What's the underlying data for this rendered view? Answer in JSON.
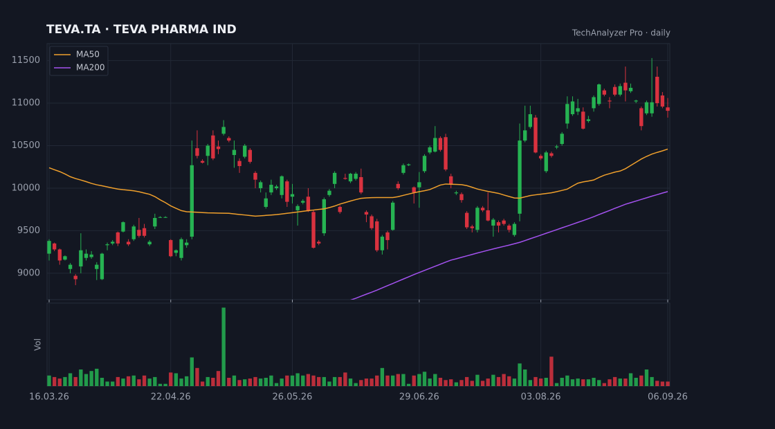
{
  "chart_data": {
    "type": "candlestick",
    "title": "TEVA.TA  ·  TEVA PHARMA IND",
    "subtitle": "TechAnalyzer Pro · daily",
    "categories": [
      "16.03.26",
      null,
      null,
      null,
      null,
      null,
      null,
      null,
      null,
      null,
      null,
      null,
      null,
      null,
      null,
      null,
      null,
      null,
      null,
      null,
      null,
      null,
      null,
      "22.04.26",
      null,
      null,
      null,
      null,
      null,
      null,
      null,
      null,
      null,
      null,
      null,
      null,
      null,
      null,
      null,
      null,
      null,
      null,
      null,
      null,
      null,
      null,
      "26.05.26",
      null,
      null,
      null,
      null,
      null,
      null,
      null,
      null,
      null,
      null,
      null,
      null,
      null,
      null,
      null,
      null,
      null,
      null,
      null,
      null,
      null,
      null,
      null,
      "29.06.26",
      null,
      null,
      null,
      null,
      null,
      null,
      null,
      null,
      null,
      null,
      null,
      null,
      null,
      null,
      null,
      null,
      null,
      null,
      null,
      null,
      null,
      null,
      "03.08.26",
      null,
      null,
      null,
      null,
      null,
      null,
      null,
      null,
      null,
      null,
      null,
      null,
      null,
      null,
      null,
      null,
      null,
      null,
      null,
      null,
      null,
      null,
      null,
      "06.09.26"
    ],
    "open": [
      9230,
      9350,
      9280,
      9160,
      9050,
      8970,
      9080,
      9180,
      9190,
      9050,
      8930,
      9330,
      9350,
      9480,
      9490,
      9370,
      9400,
      9510,
      9530,
      9340,
      9550,
      9660,
      9660,
      9390,
      9240,
      9180,
      9330,
      9430,
      10470,
      10320,
      10380,
      10620,
      10490,
      10640,
      10590,
      10390,
      10320,
      10370,
      10450,
      10180,
      10000,
      9780,
      9950,
      10000,
      9920,
      10080,
      9900,
      9740,
      9830,
      9900,
      9720,
      9370,
      9470,
      9920,
      10050,
      9780,
      10120,
      10080,
      10110,
      10130,
      9720,
      9670,
      9610,
      9270,
      9480,
      9510,
      10050,
      10180,
      10270,
      10010,
      10010,
      10200,
      10420,
      10430,
      10590,
      10600,
      10140,
      9940,
      9930,
      9710,
      9550,
      9510,
      9770,
      9740,
      9560,
      9600,
      9620,
      9560,
      9450,
      9700,
      10560,
      10720,
      10830,
      10380,
      10200,
      10410,
      10480,
      10520,
      10760,
      10870,
      10900,
      10900,
      10790,
      10940,
      10990,
      11150,
      11030,
      11190,
      11100,
      11240,
      11140,
      11020,
      10940,
      10880,
      10880,
      11310,
      11090,
      10950
    ],
    "high": [
      9400,
      9360,
      9290,
      9210,
      9120,
      8990,
      9470,
      9280,
      9260,
      9130,
      9240,
      9360,
      9390,
      9490,
      9610,
      9400,
      9570,
      9650,
      9580,
      9390,
      9700,
      9670,
      9670,
      9400,
      9280,
      9420,
      9400,
      10560,
      10680,
      10340,
      10520,
      10680,
      10560,
      10800,
      10610,
      10560,
      10350,
      10520,
      10470,
      10200,
      10090,
      9950,
      10100,
      10040,
      10150,
      10100,
      10050,
      9810,
      9870,
      10000,
      9740,
      9390,
      9890,
      9990,
      10200,
      9800,
      10170,
      10180,
      10190,
      10230,
      9740,
      9690,
      9640,
      9450,
      9500,
      9850,
      10080,
      10290,
      10290,
      10020,
      10190,
      10400,
      10500,
      10730,
      10610,
      10640,
      10170,
      9970,
      9950,
      9730,
      9570,
      9790,
      9790,
      9950,
      9650,
      9620,
      9640,
      9580,
      9600,
      10760,
      10970,
      10970,
      10860,
      10400,
      10440,
      10430,
      10510,
      10660,
      11080,
      11080,
      11050,
      10950,
      10850,
      11090,
      11230,
      11170,
      11070,
      11220,
      11230,
      11430,
      11230,
      11040,
      10960,
      11030,
      11530,
      11430,
      11130,
      11060
    ],
    "low": [
      9150,
      9260,
      9100,
      9150,
      9000,
      8860,
      9000,
      9150,
      9170,
      8920,
      8920,
      9270,
      9330,
      9320,
      9480,
      9320,
      9380,
      9420,
      9420,
      9320,
      9520,
      9650,
      9650,
      9190,
      9200,
      9150,
      9300,
      9400,
      10350,
      10290,
      10270,
      10330,
      10400,
      10620,
      10540,
      10240,
      10180,
      10350,
      10290,
      10000,
      9950,
      9760,
      9920,
      9980,
      9880,
      9780,
      9820,
      9560,
      9810,
      9720,
      9290,
      9330,
      9440,
      9900,
      10000,
      9700,
      10100,
      10060,
      10090,
      9930,
      9600,
      9510,
      9250,
      9220,
      9280,
      9500,
      9980,
      10160,
      10260,
      9820,
      9770,
      10180,
      10400,
      10420,
      10430,
      10200,
      10000,
      9920,
      9830,
      9520,
      9480,
      9480,
      9720,
      9610,
      9430,
      9480,
      9560,
      9480,
      9430,
      9610,
      10540,
      10700,
      10410,
      10330,
      10180,
      10360,
      10460,
      10500,
      10700,
      10850,
      10860,
      10690,
      10770,
      10900,
      10970,
      11080,
      10940,
      11080,
      11080,
      11020,
      11120,
      11000,
      10680,
      10860,
      10840,
      10960,
      10940,
      10830
    ],
    "close": [
      9380,
      9280,
      9150,
      9200,
      9100,
      8930,
      9270,
      9230,
      9220,
      9100,
      9230,
      9340,
      9370,
      9350,
      9600,
      9340,
      9550,
      9440,
      9440,
      9370,
      9650,
      9660,
      9660,
      9200,
      9270,
      9400,
      9360,
      10270,
      10380,
      10300,
      10500,
      10350,
      10460,
      10720,
      10560,
      10450,
      10260,
      10500,
      10310,
      10100,
      10070,
      9880,
      10040,
      10020,
      10140,
      9840,
      9930,
      9790,
      9850,
      9730,
      9300,
      9350,
      9870,
      9970,
      10180,
      9720,
      10110,
      10170,
      10170,
      9950,
      9690,
      9530,
      9270,
      9430,
      9390,
      9830,
      10000,
      10270,
      10280,
      9950,
      10070,
      10380,
      10480,
      10590,
      10450,
      10220,
      10040,
      9950,
      9860,
      9540,
      9530,
      9770,
      9740,
      9620,
      9630,
      9560,
      9580,
      9510,
      9580,
      10560,
      10680,
      10870,
      10420,
      10350,
      10420,
      10380,
      10490,
      10640,
      10990,
      11020,
      10940,
      10700,
      10810,
      11070,
      11220,
      11100,
      11020,
      11100,
      11200,
      11150,
      11180,
      11030,
      10730,
      11010,
      11010,
      11000,
      10960,
      10910
    ],
    "up_color": "#26b352",
    "down_color": "#d9323f",
    "series": [
      {
        "name": "MA50",
        "color": "#f0a02c",
        "values": [
          10240,
          10217,
          10195,
          10167,
          10135,
          10113,
          10096,
          10077,
          10056,
          10040,
          10028,
          10015,
          10002,
          9990,
          9982,
          9976,
          9969,
          9958,
          9943,
          9928,
          9901,
          9863,
          9830,
          9792,
          9763,
          9736,
          9723,
          9720,
          9717,
          9713,
          9710,
          9709,
          9707,
          9706,
          9705,
          9698,
          9691,
          9685,
          9678,
          9671,
          9675,
          9680,
          9685,
          9690,
          9697,
          9705,
          9712,
          9720,
          9728,
          9736,
          9743,
          9751,
          9757,
          9772,
          9790,
          9813,
          9831,
          9849,
          9866,
          9881,
          9886,
          9889,
          9890,
          9890,
          9890,
          9890,
          9900,
          9916,
          9931,
          9946,
          9959,
          9970,
          9984,
          10010,
          10037,
          10049,
          10047,
          10044,
          10041,
          10030,
          10011,
          9990,
          9976,
          9962,
          9951,
          9939,
          9920,
          9902,
          9885,
          9883,
          9898,
          9913,
          9922,
          9930,
          9938,
          9946,
          9959,
          9974,
          9989,
          10025,
          10059,
          10074,
          10084,
          10096,
          10126,
          10153,
          10171,
          10189,
          10202,
          10229,
          10267,
          10305,
          10343,
          10374,
          10401,
          10421,
          10439,
          10460
        ]
      },
      {
        "name": "MA200",
        "color": "#a452f0",
        "values": [
          null,
          null,
          null,
          null,
          null,
          null,
          null,
          null,
          null,
          null,
          null,
          null,
          null,
          null,
          null,
          null,
          null,
          null,
          null,
          null,
          null,
          null,
          null,
          null,
          null,
          null,
          null,
          null,
          null,
          null,
          null,
          null,
          null,
          null,
          null,
          null,
          null,
          null,
          null,
          null,
          null,
          null,
          null,
          null,
          null,
          null,
          null,
          null,
          null,
          null,
          null,
          null,
          null,
          null,
          null,
          null,
          null,
          8685,
          8706,
          8730,
          8754,
          8777,
          8801,
          8828,
          8854,
          8880,
          8906,
          8932,
          8958,
          8984,
          9009,
          9033,
          9058,
          9082,
          9106,
          9131,
          9154,
          9170,
          9187,
          9204,
          9221,
          9238,
          9254,
          9270,
          9286,
          9301,
          9316,
          9331,
          9347,
          9363,
          9384,
          9406,
          9427,
          9448,
          9470,
          9491,
          9512,
          9534,
          9555,
          9576,
          9598,
          9619,
          9641,
          9665,
          9690,
          9714,
          9738,
          9763,
          9787,
          9811,
          9830,
          9849,
          9868,
          9887,
          9906,
          9924,
          9943,
          9960
        ]
      }
    ],
    "ylim": [
      8690,
      11700
    ],
    "yticks": [
      9000,
      9500,
      10000,
      10500,
      11000,
      11500
    ],
    "grid": true,
    "legend": "upper left",
    "volume": {
      "label": "Vol",
      "ylim": [
        0,
        110
      ],
      "values": [
        14,
        12,
        10,
        12,
        17,
        12,
        22,
        16,
        20,
        23,
        11,
        6,
        6,
        12,
        10,
        13,
        14,
        9,
        14,
        10,
        12,
        3,
        3,
        18,
        17,
        10,
        13,
        38,
        24,
        6,
        12,
        11,
        20,
        104,
        11,
        14,
        8,
        9,
        10,
        12,
        10,
        11,
        14,
        4,
        10,
        14,
        14,
        17,
        14,
        16,
        14,
        12,
        12,
        6,
        12,
        12,
        18,
        10,
        4,
        8,
        10,
        10,
        14,
        24,
        14,
        14,
        16,
        16,
        3,
        14,
        16,
        19,
        10,
        16,
        11,
        8,
        9,
        5,
        8,
        12,
        7,
        15,
        7,
        10,
        15,
        12,
        16,
        13,
        10,
        30,
        22,
        8,
        12,
        10,
        11,
        39,
        4,
        11,
        14,
        9,
        10,
        9,
        9,
        11,
        8,
        4,
        9,
        12,
        10,
        10,
        17,
        11,
        14,
        22,
        12,
        7,
        6,
        6
      ]
    }
  }
}
